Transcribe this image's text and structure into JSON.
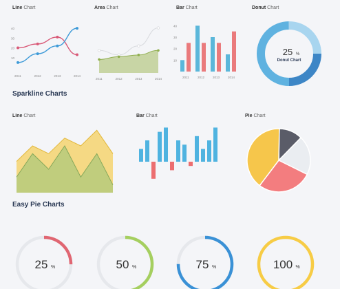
{
  "top": {
    "line": {
      "title_bold": "Line",
      "title_rest": " Chart"
    },
    "area": {
      "title_bold": "Area",
      "title_rest": " Chart"
    },
    "bar": {
      "title_bold": "Bar",
      "title_rest": " Chart"
    },
    "donut": {
      "title_bold": "Donut",
      "title_rest": " Chart"
    }
  },
  "sections": {
    "sparkline": "Sparkline Charts",
    "easy_pie": "Easy Pie Charts"
  },
  "spark": {
    "line": {
      "title_bold": "Line",
      "title_rest": " Chart"
    },
    "bar": {
      "title_bold": "Bar",
      "title_rest": " Chart"
    },
    "pie": {
      "title_bold": "Pie",
      "title_rest": " Chart"
    }
  },
  "chart_data": [
    {
      "type": "line",
      "x": [
        "2011",
        "2012",
        "2013",
        "2014"
      ],
      "yticks": [
        "10",
        "20",
        "30",
        "40"
      ],
      "series": [
        {
          "color": "#d95a78",
          "values": [
            20,
            24,
            31,
            13
          ]
        },
        {
          "color": "#3d9ad8",
          "values": [
            5,
            14,
            22,
            40
          ]
        }
      ]
    },
    {
      "type": "area",
      "x": [
        "2011",
        "2012",
        "2013",
        "2014"
      ],
      "series": [
        {
          "color": "#b9c98a",
          "values": [
            15,
            18,
            20,
            25
          ]
        },
        {
          "color": "#d8dade",
          "values": [
            25,
            20,
            30,
            50
          ]
        }
      ]
    },
    {
      "type": "bar",
      "x": [
        "2011",
        "2012",
        "2013",
        "2014"
      ],
      "yticks": [
        "10",
        "20",
        "30",
        "40"
      ],
      "series": [
        {
          "color": "#5bb7da",
          "values": [
            10,
            40,
            30,
            15
          ]
        },
        {
          "color": "#ea7a7c",
          "values": [
            25,
            25,
            25,
            35
          ]
        }
      ]
    },
    {
      "type": "donut",
      "value": 25,
      "center_value": "25",
      "unit": "%",
      "label": "Donut Chart",
      "colors": [
        "#3d86c6",
        "#5fb2e0",
        "#a8d5ef"
      ]
    },
    {
      "type": "area",
      "series": [
        {
          "color": "#f5cd52",
          "values": [
            4,
            6,
            5,
            7,
            6,
            8,
            5
          ]
        },
        {
          "color": "#a9c87a",
          "values": [
            2,
            5,
            3,
            6,
            2,
            5,
            1
          ]
        }
      ]
    },
    {
      "type": "bar",
      "values": [
        3,
        5,
        -4,
        7,
        8,
        -2,
        5,
        4,
        -1,
        6,
        3,
        5,
        8
      ],
      "colors": {
        "positive": "#4fb3e0",
        "negative": "#ec6e70"
      }
    },
    {
      "type": "pie",
      "slices": [
        {
          "value": 40,
          "color": "#f6c64b"
        },
        {
          "value": 28,
          "color": "#f37d7f"
        },
        {
          "value": 20,
          "color": "#eaedf1"
        },
        {
          "value": 12,
          "color": "#5a5c68"
        }
      ]
    },
    {
      "type": "easy-pie",
      "items": [
        {
          "value": "25",
          "unit": "%",
          "color": "#e06672"
        },
        {
          "value": "50",
          "unit": "%",
          "color": "#a5cf5f"
        },
        {
          "value": "75",
          "unit": "%",
          "color": "#3a91d6"
        },
        {
          "value": "100",
          "unit": "%",
          "color": "#f7cc45"
        }
      ]
    }
  ]
}
